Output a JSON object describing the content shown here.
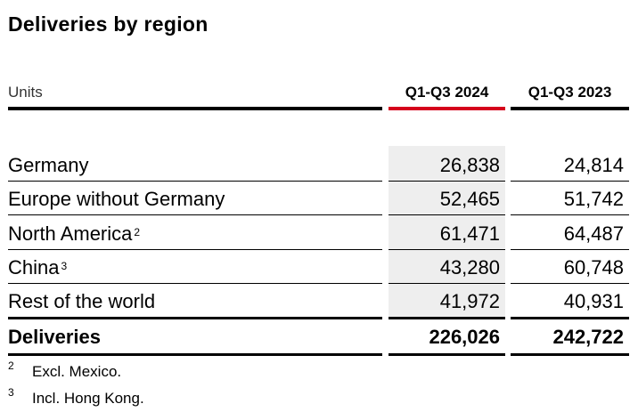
{
  "title": "Deliveries by region",
  "header": {
    "units": "Units",
    "col1": "Q1-Q3 2024",
    "col2": "Q1-Q3 2023"
  },
  "rows": [
    {
      "label": "Germany",
      "sup": "",
      "v2024": "26,838",
      "v2023": "24,814"
    },
    {
      "label": "Europe without Germany",
      "sup": "",
      "v2024": "52,465",
      "v2023": "51,742"
    },
    {
      "label": "North America",
      "sup": "2",
      "v2024": "61,471",
      "v2023": "64,487"
    },
    {
      "label": "China",
      "sup": "3",
      "v2024": "43,280",
      "v2023": "60,748"
    },
    {
      "label": "Rest of the world",
      "sup": "",
      "v2024": "41,972",
      "v2023": "40,931"
    }
  ],
  "total": {
    "label": "Deliveries",
    "v2024": "226,026",
    "v2023": "242,722"
  },
  "footnotes": [
    {
      "mark": "2",
      "text": "Excl. Mexico."
    },
    {
      "mark": "3",
      "text": "Incl. Hong Kong."
    }
  ],
  "colors": {
    "accent": "#d5001c",
    "shade": "#eeeeee"
  }
}
